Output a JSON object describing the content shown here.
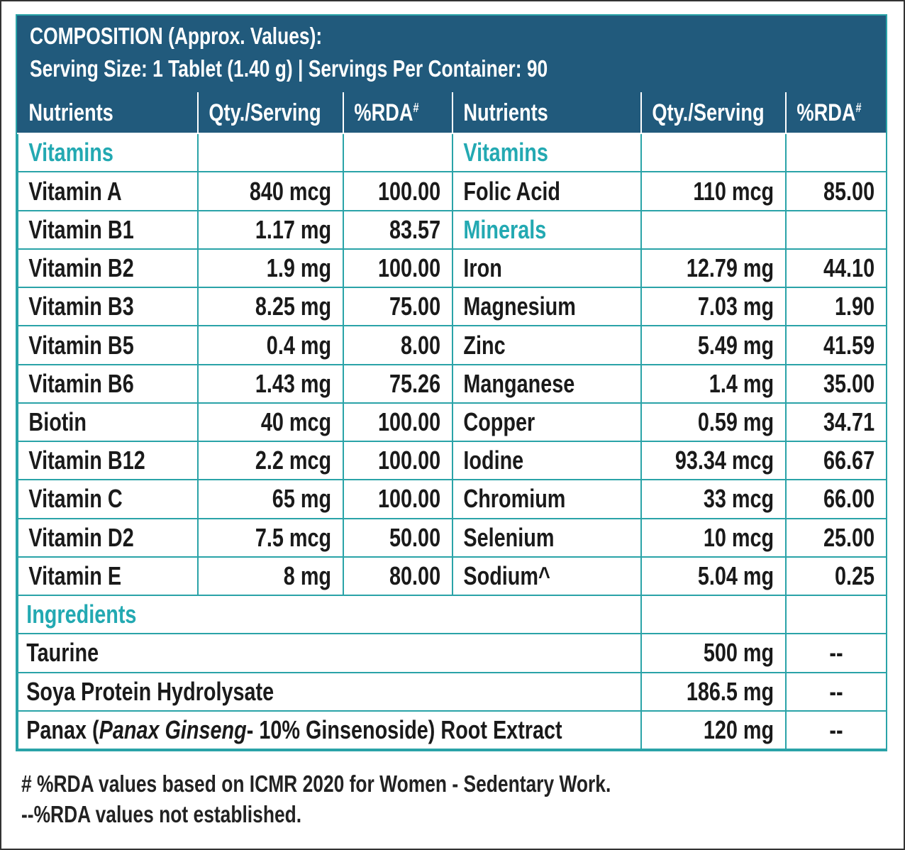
{
  "header": {
    "line1": "COMPOSITION (Approx. Values):",
    "line2": "Serving Size: 1 Tablet (1.40 g) | Servings Per Container: 90"
  },
  "columns": {
    "nutrients": "Nutrients",
    "qty": "Qty./Serving",
    "rda": "%RDA",
    "rda_mark": "#"
  },
  "sections": {
    "vitamins": "Vitamins",
    "minerals": "Minerals",
    "ingredients": "Ingredients"
  },
  "left_rows": [
    {
      "name": "Vitamin A",
      "qty": "840 mcg",
      "rda": "100.00"
    },
    {
      "name": "Vitamin B1",
      "qty": "1.17 mg",
      "rda": "83.57"
    },
    {
      "name": "Vitamin B2",
      "qty": "1.9 mg",
      "rda": "100.00"
    },
    {
      "name": "Vitamin B3",
      "qty": "8.25 mg",
      "rda": "75.00"
    },
    {
      "name": "Vitamin B5",
      "qty": "0.4 mg",
      "rda": "8.00"
    },
    {
      "name": "Vitamin B6",
      "qty": "1.43 mg",
      "rda": "75.26"
    },
    {
      "name": "Biotin",
      "qty": "40 mcg",
      "rda": "100.00"
    },
    {
      "name": "Vitamin B12",
      "qty": "2.2 mcg",
      "rda": "100.00"
    },
    {
      "name": "Vitamin C",
      "qty": "65 mg",
      "rda": "100.00"
    },
    {
      "name": "Vitamin D2",
      "qty": "7.5 mcg",
      "rda": "50.00"
    },
    {
      "name": "Vitamin E",
      "qty": "8 mg",
      "rda": "80.00"
    }
  ],
  "right_rows": [
    {
      "name": "Folic Acid",
      "qty": "110 mcg",
      "rda": "85.00"
    },
    {
      "name": "Iron",
      "qty": "12.79 mg",
      "rda": "44.10"
    },
    {
      "name": "Magnesium",
      "qty": "7.03 mg",
      "rda": "1.90"
    },
    {
      "name": "Zinc",
      "qty": "5.49 mg",
      "rda": "41.59"
    },
    {
      "name": "Manganese",
      "qty": "1.4 mg",
      "rda": "35.00"
    },
    {
      "name": "Copper",
      "qty": "0.59 mg",
      "rda": "34.71"
    },
    {
      "name": "Iodine",
      "qty": "93.34 mcg",
      "rda": "66.67"
    },
    {
      "name": "Chromium",
      "qty": "33 mcg",
      "rda": "66.00"
    },
    {
      "name": "Selenium",
      "qty": "10 mcg",
      "rda": "25.00"
    },
    {
      "name": "Sodium^",
      "qty": "5.04 mg",
      "rda": "0.25"
    }
  ],
  "ingredients": [
    {
      "name": "Taurine",
      "qty": "500 mg",
      "rda": "--"
    },
    {
      "name": "Soya Protein Hydrolysate",
      "qty": "186.5 mg",
      "rda": "--"
    },
    {
      "name_pre": "Panax (",
      "name_italic": "Panax Ginseng",
      "name_post": "- 10% Ginsenoside) Root Extract",
      "qty": "120 mg",
      "rda": "--"
    }
  ],
  "notes": {
    "note1": "# %RDA values based on ICMR 2020 for Women - Sedentary Work.",
    "note2": "--%RDA values not established."
  },
  "colors": {
    "header_bg": "#215a7c",
    "border": "#2aa3a8",
    "section_text": "#23a9b2"
  }
}
